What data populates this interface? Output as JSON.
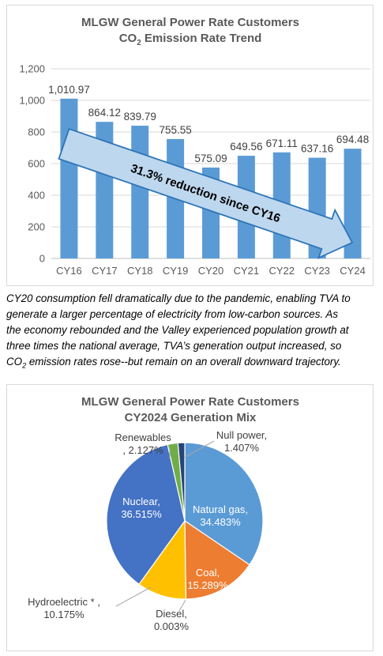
{
  "chart_data": [
    {
      "type": "bar",
      "title_line1": "MLGW General Power Rate Customers",
      "title_line2_pre": "CO",
      "title_line2_sub": "2",
      "title_line2_post": " Emission  Rate Trend",
      "categories": [
        "CY16",
        "CY17",
        "CY18",
        "CY19",
        "CY20",
        "CY21",
        "CY22",
        "CY23",
        "CY24"
      ],
      "values": [
        1010.97,
        864.12,
        839.79,
        755.55,
        575.09,
        649.56,
        671.11,
        637.16,
        694.48
      ],
      "value_labels": [
        "1,010.97",
        "864.12",
        "839.79",
        "755.55",
        "575.09",
        "649.56",
        "671.11",
        "637.16",
        "694.48"
      ],
      "ylim": [
        0,
        1200
      ],
      "yticks": [
        "0",
        "200",
        "400",
        "600",
        "800",
        "1,000",
        "1,200"
      ],
      "ytick_values": [
        0,
        200,
        400,
        600,
        800,
        1000,
        1200
      ],
      "gridlines": true,
      "bar_color": "#5b9bd5",
      "arrow_text": "31.3% reduction since CY16",
      "arrow_color": "#bdd7ee",
      "arrow_border": "#2e75b6"
    },
    {
      "type": "pie",
      "title_line1": "MLGW General Power Rate Customers",
      "title_line2": "CY2024  Generation Mix",
      "slices": [
        {
          "name": "Natural gas",
          "value": 34.483,
          "label": "Natural gas,\n34.483%",
          "color": "#5b9bd5",
          "text_color": "#ffffff"
        },
        {
          "name": "Coal",
          "value": 15.289,
          "label": "Coal,\n15.289%",
          "color": "#ed7d31",
          "text_color": "#ffffff"
        },
        {
          "name": "Diesel",
          "value": 0.003,
          "label": "Diesel,\n0.003%",
          "color": "#a5a5a5",
          "text_color": "#404040"
        },
        {
          "name": "Hydroelectric *",
          "value": 10.175,
          "label": "Hydroelectric * ,\n10.175%",
          "color": "#ffc000",
          "text_color": "#404040"
        },
        {
          "name": "Nuclear",
          "value": 36.515,
          "label": "Nuclear,\n36.515%",
          "color": "#4472c4",
          "text_color": "#ffffff"
        },
        {
          "name": "Renewables",
          "value": 2.127,
          "label": "Renewables\n, 2.127%",
          "color": "#70ad47",
          "text_color": "#404040"
        },
        {
          "name": "Null power",
          "value": 1.407,
          "label": "Null power,\n1.407%",
          "color": "#264478",
          "text_color": "#404040"
        }
      ]
    }
  ],
  "note": {
    "lines": [
      "CY20 consumption fell dramatically due to the pandemic, enabling TVA to",
      "generate a larger percentage of electricity from low-carbon sources. As",
      "the economy rebounded and the Valley experienced population growth at",
      "three times the national average, TVA’s generation output increased, so"
    ],
    "last_pre": "CO",
    "last_sub": "2",
    "last_post": " emission rates rose--but remain on an overall downward trajectory."
  }
}
